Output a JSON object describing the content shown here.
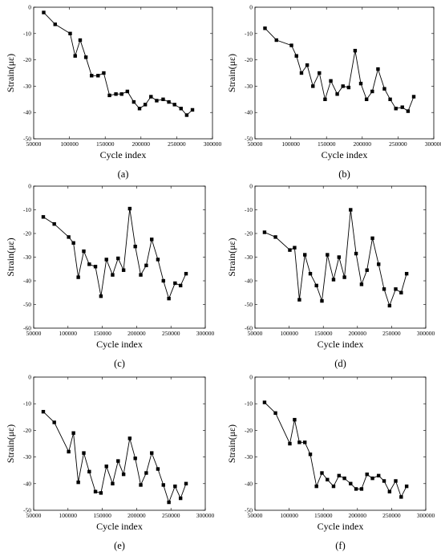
{
  "figure": {
    "panels": [
      {
        "label": "(a)",
        "label_letter": "a"
      },
      {
        "label": "(b)",
        "label_letter": "b"
      },
      {
        "label": "(c)",
        "label_letter": "c"
      },
      {
        "label": "(d)",
        "label_letter": "d"
      },
      {
        "label": "(e)",
        "label_letter": "e"
      },
      {
        "label": "(f)",
        "label_letter": "f"
      }
    ]
  },
  "chart_data": [
    {
      "type": "line",
      "xlabel": "Cycle index",
      "ylabel": "Strain(με)",
      "xlim": [
        50000,
        300000
      ],
      "ylim": [
        -50,
        0
      ],
      "x_ticks": [
        50000,
        100000,
        150000,
        200000,
        250000,
        300000
      ],
      "y_ticks": [
        0,
        -10,
        -20,
        -30,
        -40,
        -50
      ],
      "grid": false,
      "marker": "square",
      "x": [
        64000,
        80000,
        101000,
        108000,
        115000,
        123000,
        131000,
        140000,
        148000,
        156000,
        165000,
        173000,
        181000,
        190000,
        198000,
        206000,
        214000,
        222000,
        231000,
        239000,
        247000,
        256000,
        264000,
        272000
      ],
      "y": [
        -2,
        -6.5,
        -10,
        -18.5,
        -12.5,
        -19,
        -26,
        -26,
        -25,
        -33.5,
        -33,
        -33,
        -32,
        -36,
        -38.5,
        -37,
        -34,
        -35.5,
        -35,
        -36,
        -37,
        -38.5,
        -41,
        -39
      ]
    },
    {
      "type": "line",
      "xlabel": "Cycle index",
      "ylabel": "Strain(με)",
      "xlim": [
        50000,
        300000
      ],
      "ylim": [
        -50,
        0
      ],
      "x_ticks": [
        50000,
        100000,
        150000,
        200000,
        250000,
        300000
      ],
      "y_ticks": [
        0,
        -10,
        -20,
        -30,
        -40,
        -50
      ],
      "grid": false,
      "marker": "square",
      "x": [
        64000,
        80000,
        101000,
        108000,
        115000,
        123000,
        131000,
        140000,
        148000,
        156000,
        165000,
        173000,
        181000,
        190000,
        198000,
        206000,
        214000,
        222000,
        231000,
        239000,
        247000,
        256000,
        264000,
        272000
      ],
      "y": [
        -8,
        -12.5,
        -14.5,
        -18.5,
        -25,
        -22,
        -30,
        -25,
        -35,
        -28,
        -33,
        -30,
        -30.5,
        -16.5,
        -29,
        -35,
        -32,
        -23.5,
        -31,
        -35,
        -38.5,
        -38,
        -39.5,
        -34
      ]
    },
    {
      "type": "line",
      "xlabel": "Cycle index",
      "ylabel": "Strain(με)",
      "xlim": [
        50000,
        300000
      ],
      "ylim": [
        -60,
        0
      ],
      "x_ticks": [
        50000,
        100000,
        150000,
        200000,
        250000,
        300000
      ],
      "y_ticks": [
        0,
        -10,
        -20,
        -30,
        -40,
        -50,
        -60
      ],
      "grid": false,
      "marker": "square",
      "x": [
        64000,
        80000,
        101000,
        108000,
        115000,
        123000,
        131000,
        140000,
        148000,
        156000,
        165000,
        173000,
        181000,
        190000,
        198000,
        206000,
        214000,
        222000,
        231000,
        239000,
        247000,
        256000,
        264000,
        272000
      ],
      "y": [
        -13,
        -16,
        -21.5,
        -24,
        -38.5,
        -27.5,
        -33,
        -34,
        -46.5,
        -31,
        -37.5,
        -30.5,
        -35.5,
        -9.5,
        -25.5,
        -37.5,
        -33.5,
        -22.5,
        -31,
        -40,
        -47.5,
        -41,
        -42,
        -37
      ]
    },
    {
      "type": "line",
      "xlabel": "Cycle index",
      "ylabel": "Strain(με)",
      "xlim": [
        50000,
        300000
      ],
      "ylim": [
        -60,
        0
      ],
      "x_ticks": [
        50000,
        100000,
        150000,
        200000,
        250000,
        300000
      ],
      "y_ticks": [
        0,
        -10,
        -20,
        -30,
        -40,
        -50,
        -60
      ],
      "grid": false,
      "marker": "square",
      "x": [
        64000,
        80000,
        101000,
        108000,
        115000,
        123000,
        131000,
        140000,
        148000,
        156000,
        165000,
        173000,
        181000,
        190000,
        198000,
        206000,
        214000,
        222000,
        231000,
        239000,
        247000,
        256000,
        264000,
        272000
      ],
      "y": [
        -19.5,
        -21.5,
        -27,
        -26,
        -48,
        -29,
        -37,
        -42,
        -48.5,
        -29,
        -39.5,
        -30,
        -38.5,
        -10,
        -28.5,
        -41.5,
        -35.5,
        -22,
        -33,
        -43.5,
        -50.5,
        -43.5,
        -45,
        -37
      ]
    },
    {
      "type": "line",
      "xlabel": "Cycle index",
      "ylabel": "Strain(με)",
      "xlim": [
        50000,
        300000
      ],
      "ylim": [
        -50,
        0
      ],
      "x_ticks": [
        50000,
        100000,
        150000,
        200000,
        250000,
        300000
      ],
      "y_ticks": [
        0,
        -10,
        -20,
        -30,
        -40,
        -50
      ],
      "grid": false,
      "marker": "square",
      "x": [
        64000,
        80000,
        101000,
        108000,
        115000,
        123000,
        131000,
        140000,
        148000,
        156000,
        165000,
        173000,
        181000,
        190000,
        198000,
        206000,
        214000,
        222000,
        231000,
        239000,
        247000,
        256000,
        264000,
        272000
      ],
      "y": [
        -13,
        -17,
        -28,
        -21,
        -39.5,
        -28.5,
        -35.5,
        -43,
        -43.5,
        -33.5,
        -40,
        -31.5,
        -36.5,
        -23,
        -30.5,
        -40.5,
        -36,
        -28.5,
        -34.5,
        -40.5,
        -47,
        -41,
        -45.5,
        -40
      ]
    },
    {
      "type": "line",
      "xlabel": "Cycle index",
      "ylabel": "Strain(με)",
      "xlim": [
        50000,
        300000
      ],
      "ylim": [
        -50,
        0
      ],
      "x_ticks": [
        50000,
        100000,
        150000,
        200000,
        250000,
        300000
      ],
      "y_ticks": [
        0,
        -10,
        -20,
        -30,
        -40,
        -50
      ],
      "grid": false,
      "marker": "square",
      "x": [
        64000,
        80000,
        101000,
        108000,
        115000,
        123000,
        131000,
        140000,
        148000,
        156000,
        165000,
        173000,
        181000,
        190000,
        198000,
        206000,
        214000,
        222000,
        231000,
        239000,
        247000,
        256000,
        264000,
        272000
      ],
      "y": [
        -9.5,
        -13.5,
        -25,
        -16,
        -24.5,
        -24.5,
        -29,
        -41,
        -36,
        -38.5,
        -41,
        -37,
        -38,
        -40,
        -42,
        -42,
        -36.5,
        -38,
        -37,
        -39,
        -43,
        -39,
        -45,
        -41
      ]
    }
  ]
}
